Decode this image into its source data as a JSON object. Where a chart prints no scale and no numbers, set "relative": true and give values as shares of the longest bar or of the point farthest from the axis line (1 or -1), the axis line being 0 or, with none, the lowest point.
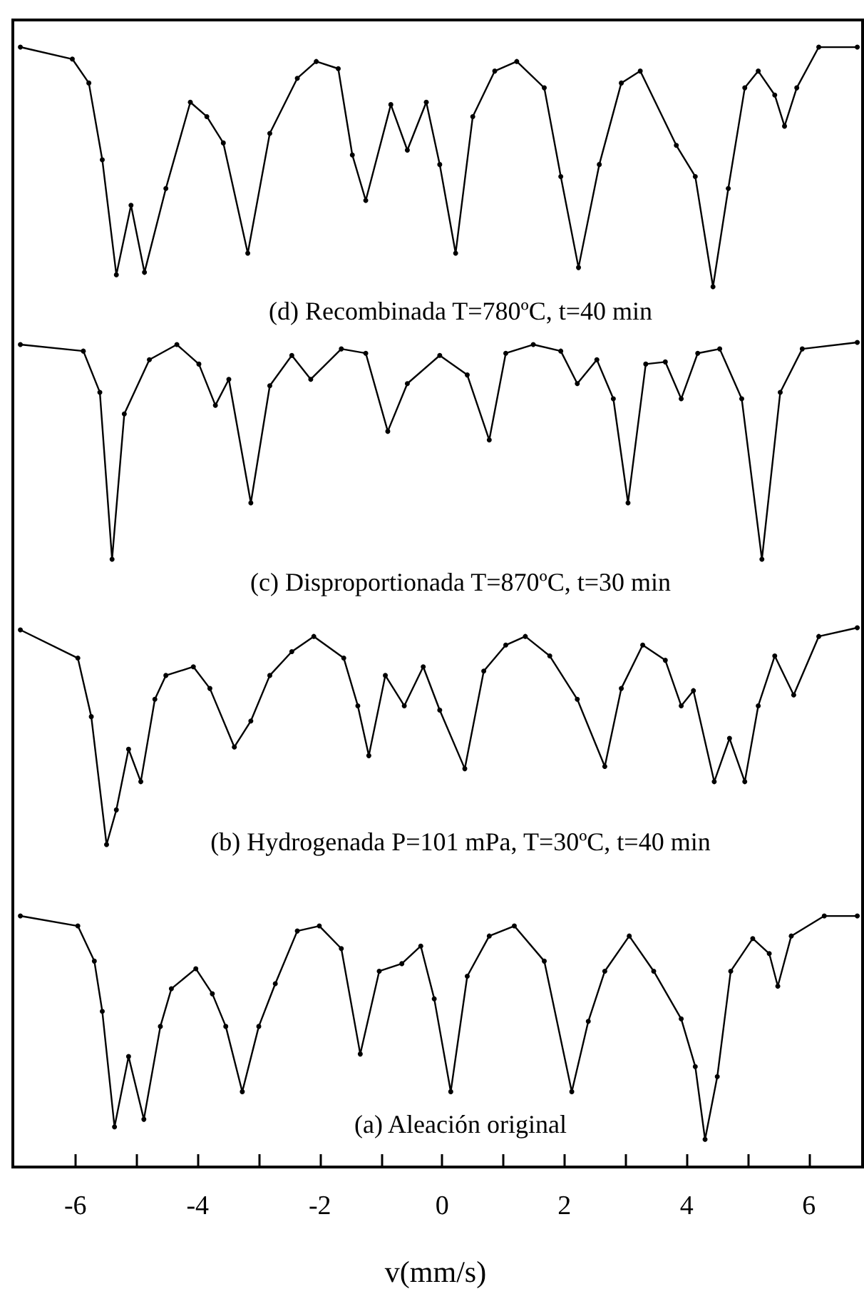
{
  "chart_data": [
    {
      "type": "line",
      "title": "(d) Recombinada T=780ºC, t=40 min",
      "relative": true,
      "xlim": [
        -7,
        6.9
      ],
      "tick_labels": false,
      "marker": "circle",
      "line_style": "solid",
      "series": [
        {
          "color": "#000000",
          "x": [
            -6.9,
            -6.05,
            -5.78,
            -5.56,
            -5.33,
            -5.09,
            -4.87,
            -4.52,
            -4.12,
            -3.85,
            -3.58,
            -3.18,
            -2.82,
            -2.37,
            -2.06,
            -1.7,
            -1.47,
            -1.25,
            -0.84,
            -0.57,
            -0.26,
            -0.04,
            0.22,
            0.5,
            0.86,
            1.22,
            1.67,
            1.94,
            2.23,
            2.57,
            2.93,
            3.24,
            3.83,
            4.14,
            4.43,
            4.68,
            4.95,
            5.17,
            5.44,
            5.6,
            5.8,
            6.16,
            6.79
          ],
          "values": [
            1.0,
            0.95,
            0.85,
            0.53,
            0.05,
            0.34,
            0.06,
            0.41,
            0.77,
            0.71,
            0.6,
            0.14,
            0.64,
            0.87,
            0.94,
            0.91,
            0.55,
            0.36,
            0.76,
            0.57,
            0.77,
            0.51,
            0.14,
            0.71,
            0.9,
            0.94,
            0.83,
            0.46,
            0.08,
            0.51,
            0.85,
            0.9,
            0.59,
            0.46,
            0.0,
            0.41,
            0.83,
            0.9,
            0.8,
            0.67,
            0.83,
            1.0,
            1.0
          ]
        }
      ]
    },
    {
      "type": "line",
      "title": "(c) Disproportionada T=870ºC, t=30 min",
      "relative": true,
      "xlim": [
        -7,
        6.9
      ],
      "tick_labels": false,
      "marker": "circle",
      "line_style": "solid",
      "series": [
        {
          "color": "#000000",
          "x": [
            -6.9,
            -5.87,
            -5.6,
            -5.4,
            -5.2,
            -4.79,
            -4.34,
            -3.98,
            -3.71,
            -3.49,
            -3.13,
            -2.82,
            -2.46,
            -2.15,
            -1.65,
            -1.25,
            -0.89,
            -0.57,
            -0.04,
            0.41,
            0.77,
            1.04,
            1.49,
            1.94,
            2.21,
            2.53,
            2.8,
            3.04,
            3.33,
            3.65,
            3.91,
            4.18,
            4.54,
            4.9,
            5.23,
            5.53,
            5.89,
            6.79
          ],
          "values": [
            0.99,
            0.96,
            0.77,
            0.0,
            0.67,
            0.92,
            0.99,
            0.9,
            0.71,
            0.83,
            0.26,
            0.8,
            0.94,
            0.83,
            0.97,
            0.95,
            0.59,
            0.81,
            0.94,
            0.85,
            0.55,
            0.95,
            0.99,
            0.96,
            0.81,
            0.92,
            0.74,
            0.26,
            0.9,
            0.91,
            0.74,
            0.95,
            0.97,
            0.74,
            0.0,
            0.77,
            0.97,
            1.0
          ]
        }
      ]
    },
    {
      "type": "line",
      "title": "(b) Hydrogenada P=101 mPa, T=30ºC, t=40 min",
      "relative": true,
      "xlim": [
        -7,
        6.9
      ],
      "tick_labels": false,
      "marker": "circle",
      "line_style": "solid",
      "series": [
        {
          "color": "#000000",
          "x": [
            -6.9,
            -5.96,
            -5.74,
            -5.49,
            -5.33,
            -5.13,
            -4.93,
            -4.7,
            -4.52,
            -4.07,
            -3.8,
            -3.4,
            -3.13,
            -2.82,
            -2.46,
            -2.1,
            -1.61,
            -1.38,
            -1.2,
            -0.93,
            -0.62,
            -0.31,
            -0.04,
            0.37,
            0.68,
            1.04,
            1.36,
            1.76,
            2.21,
            2.66,
            2.93,
            3.28,
            3.65,
            3.91,
            4.11,
            4.45,
            4.7,
            4.95,
            5.17,
            5.44,
            5.75,
            6.16,
            6.79
          ],
          "values": [
            0.99,
            0.86,
            0.59,
            0.0,
            0.16,
            0.44,
            0.29,
            0.67,
            0.78,
            0.82,
            0.72,
            0.45,
            0.57,
            0.78,
            0.89,
            0.96,
            0.86,
            0.64,
            0.41,
            0.78,
            0.64,
            0.82,
            0.62,
            0.35,
            0.8,
            0.92,
            0.96,
            0.87,
            0.67,
            0.36,
            0.72,
            0.92,
            0.85,
            0.64,
            0.71,
            0.29,
            0.49,
            0.29,
            0.64,
            0.87,
            0.69,
            0.96,
            1.0
          ]
        }
      ]
    },
    {
      "type": "line",
      "title": "(a) Aleación original",
      "xlabel": "v(mm/s)",
      "relative": true,
      "xlim": [
        -7,
        6.9
      ],
      "tick_labels": "x",
      "marker": "circle",
      "line_style": "solid",
      "xticks": [
        -6,
        {
          "value": -5,
          "label": null
        },
        -4,
        {
          "value": -3,
          "label": null
        },
        -2,
        {
          "value": -1,
          "label": null
        },
        0,
        {
          "value": 1,
          "label": null
        },
        2,
        {
          "value": 3,
          "label": null
        },
        4,
        {
          "value": 5,
          "label": null
        },
        6
      ],
      "series": [
        {
          "color": "#000000",
          "x": [
            -6.9,
            -5.96,
            -5.69,
            -5.56,
            -5.36,
            -5.13,
            -4.88,
            -4.61,
            -4.43,
            -4.03,
            -3.76,
            -3.54,
            -3.27,
            -3.0,
            -2.73,
            -2.37,
            -2.01,
            -1.65,
            -1.34,
            -1.03,
            -0.66,
            -0.35,
            -0.13,
            0.14,
            0.41,
            0.77,
            1.18,
            1.67,
            2.12,
            2.39,
            2.66,
            3.06,
            3.46,
            3.91,
            4.14,
            4.3,
            4.5,
            4.72,
            5.08,
            5.35,
            5.49,
            5.71,
            6.25,
            6.79
          ],
          "values": [
            1.0,
            0.96,
            0.82,
            0.62,
            0.16,
            0.44,
            0.19,
            0.56,
            0.71,
            0.79,
            0.69,
            0.56,
            0.3,
            0.56,
            0.73,
            0.94,
            0.96,
            0.87,
            0.45,
            0.78,
            0.81,
            0.88,
            0.67,
            0.3,
            0.76,
            0.92,
            0.96,
            0.82,
            0.3,
            0.58,
            0.78,
            0.92,
            0.78,
            0.59,
            0.4,
            0.11,
            0.36,
            0.78,
            0.91,
            0.85,
            0.72,
            0.92,
            1.0,
            1.0
          ]
        }
      ]
    }
  ]
}
